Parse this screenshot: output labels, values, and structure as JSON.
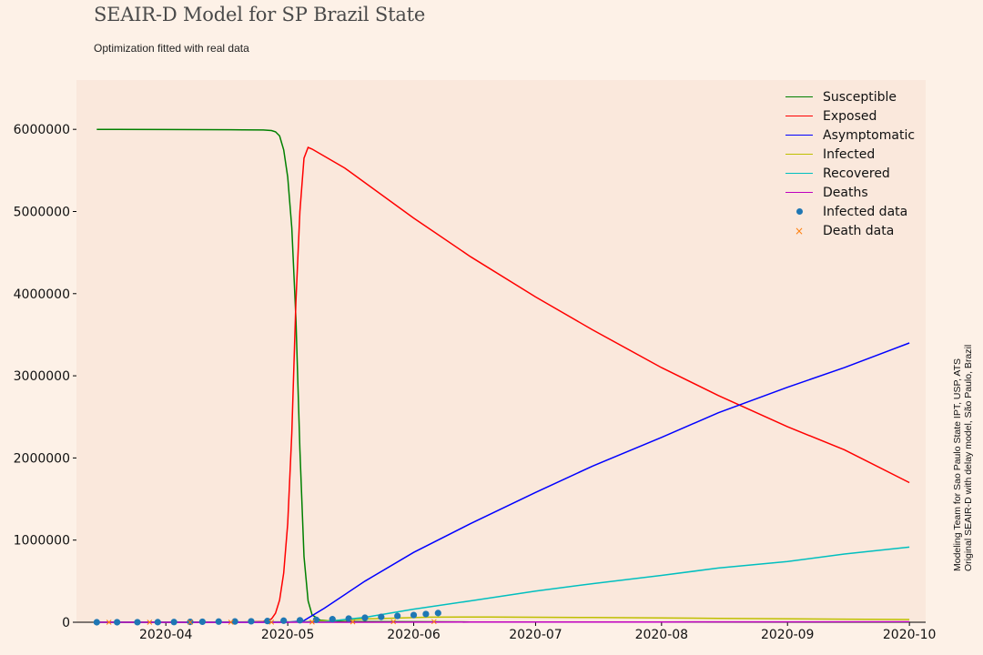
{
  "header": {
    "title": "SEAIR-D Model for SP Brazil State",
    "subtitle": "Optimization fitted with real data"
  },
  "side_note": {
    "line1": "Modeling Team for Sao Paulo State IPT, USP, ATS",
    "line2": "Original SEAIR-D with delay model, São Paulo, Brazil"
  },
  "colors": {
    "page_bg": "#fdf1e7",
    "plot_bg": "#fae8dc",
    "susceptible": "#008000",
    "exposed": "#ff0000",
    "asymptomatic": "#0000ff",
    "infected": "#bfbf00",
    "recovered": "#00bfbf",
    "deaths": "#bf00bf",
    "infected_data": "#1f77b4",
    "death_data": "#ff7f0e"
  },
  "chart_data": {
    "type": "line",
    "title": "SEAIR-D Model for SP Brazil State",
    "subtitle": "Optimization fitted with real data",
    "xlabel": "",
    "ylabel": "",
    "xlim": [
      "2020-03-10",
      "2020-10-05"
    ],
    "ylim": [
      0,
      6600000
    ],
    "x_ticks": [
      "2020-04",
      "2020-05",
      "2020-06",
      "2020-07",
      "2020-08",
      "2020-09",
      "2020-10"
    ],
    "y_ticks": [
      0,
      1000000,
      2000000,
      3000000,
      4000000,
      5000000,
      6000000
    ],
    "grid": false,
    "legend_position": "top-right",
    "series": [
      {
        "name": "Susceptible",
        "style": "line",
        "points": [
          [
            "2020-03-15",
            6000000
          ],
          [
            "2020-04-01",
            5998000
          ],
          [
            "2020-04-20",
            5994000
          ],
          [
            "2020-04-25",
            5992000
          ],
          [
            "2020-04-27",
            5985000
          ],
          [
            "2020-04-28",
            5970000
          ],
          [
            "2020-04-29",
            5920000
          ],
          [
            "2020-04-30",
            5750000
          ],
          [
            "2020-05-01",
            5420000
          ],
          [
            "2020-05-02",
            4800000
          ],
          [
            "2020-05-03",
            3700000
          ],
          [
            "2020-05-04",
            2100000
          ],
          [
            "2020-05-05",
            800000
          ],
          [
            "2020-05-06",
            260000
          ],
          [
            "2020-05-07",
            90000
          ],
          [
            "2020-05-09",
            25000
          ],
          [
            "2020-05-15",
            8000
          ],
          [
            "2020-06-15",
            3000
          ],
          [
            "2020-10-01",
            1000
          ]
        ]
      },
      {
        "name": "Exposed",
        "style": "line",
        "points": [
          [
            "2020-03-15",
            0
          ],
          [
            "2020-04-20",
            2000
          ],
          [
            "2020-04-25",
            10000
          ],
          [
            "2020-04-27",
            40000
          ],
          [
            "2020-04-28",
            110000
          ],
          [
            "2020-04-29",
            270000
          ],
          [
            "2020-04-30",
            600000
          ],
          [
            "2020-05-01",
            1200000
          ],
          [
            "2020-05-02",
            2300000
          ],
          [
            "2020-05-03",
            3900000
          ],
          [
            "2020-05-04",
            5000000
          ],
          [
            "2020-05-05",
            5650000
          ],
          [
            "2020-05-06",
            5780000
          ],
          [
            "2020-05-07",
            5760000
          ],
          [
            "2020-05-15",
            5530000
          ],
          [
            "2020-06-01",
            4920000
          ],
          [
            "2020-06-15",
            4450000
          ],
          [
            "2020-07-01",
            3960000
          ],
          [
            "2020-07-15",
            3560000
          ],
          [
            "2020-08-01",
            3100000
          ],
          [
            "2020-08-15",
            2760000
          ],
          [
            "2020-09-01",
            2380000
          ],
          [
            "2020-09-15",
            2100000
          ],
          [
            "2020-10-01",
            1700000
          ]
        ]
      },
      {
        "name": "Asymptomatic",
        "style": "line",
        "points": [
          [
            "2020-03-15",
            0
          ],
          [
            "2020-05-01",
            0
          ],
          [
            "2020-05-05",
            20000
          ],
          [
            "2020-05-10",
            170000
          ],
          [
            "2020-05-20",
            500000
          ],
          [
            "2020-06-01",
            850000
          ],
          [
            "2020-06-15",
            1200000
          ],
          [
            "2020-07-01",
            1580000
          ],
          [
            "2020-07-15",
            1900000
          ],
          [
            "2020-08-01",
            2250000
          ],
          [
            "2020-08-15",
            2550000
          ],
          [
            "2020-09-01",
            2860000
          ],
          [
            "2020-09-15",
            3100000
          ],
          [
            "2020-10-01",
            3400000
          ]
        ]
      },
      {
        "name": "Infected",
        "style": "line",
        "points": [
          [
            "2020-03-15",
            0
          ],
          [
            "2020-05-05",
            5000
          ],
          [
            "2020-05-20",
            40000
          ],
          [
            "2020-06-05",
            62000
          ],
          [
            "2020-06-20",
            64000
          ],
          [
            "2020-07-15",
            58000
          ],
          [
            "2020-08-15",
            48000
          ],
          [
            "2020-09-15",
            38000
          ],
          [
            "2020-10-01",
            33000
          ]
        ]
      },
      {
        "name": "Recovered",
        "style": "line",
        "points": [
          [
            "2020-03-15",
            0
          ],
          [
            "2020-05-10",
            5000
          ],
          [
            "2020-05-20",
            60000
          ],
          [
            "2020-06-01",
            160000
          ],
          [
            "2020-06-15",
            260000
          ],
          [
            "2020-07-01",
            380000
          ],
          [
            "2020-07-15",
            470000
          ],
          [
            "2020-08-01",
            570000
          ],
          [
            "2020-08-15",
            660000
          ],
          [
            "2020-09-01",
            740000
          ],
          [
            "2020-09-15",
            830000
          ],
          [
            "2020-10-01",
            915000
          ]
        ]
      },
      {
        "name": "Deaths",
        "style": "line",
        "points": [
          [
            "2020-03-15",
            0
          ],
          [
            "2020-05-15",
            500
          ],
          [
            "2020-06-15",
            2000
          ],
          [
            "2020-08-01",
            3500
          ],
          [
            "2020-10-01",
            5000
          ]
        ]
      },
      {
        "name": "Infected data",
        "style": "dots",
        "points": [
          [
            "2020-03-15",
            150
          ],
          [
            "2020-03-20",
            400
          ],
          [
            "2020-03-25",
            900
          ],
          [
            "2020-03-30",
            1500
          ],
          [
            "2020-04-03",
            2500
          ],
          [
            "2020-04-07",
            4500
          ],
          [
            "2020-04-10",
            6000
          ],
          [
            "2020-04-14",
            8000
          ],
          [
            "2020-04-18",
            9500
          ],
          [
            "2020-04-22",
            12000
          ],
          [
            "2020-04-26",
            15000
          ],
          [
            "2020-04-30",
            19000
          ],
          [
            "2020-05-04",
            24000
          ],
          [
            "2020-05-08",
            30000
          ],
          [
            "2020-05-12",
            37000
          ],
          [
            "2020-05-16",
            45000
          ],
          [
            "2020-05-20",
            55000
          ],
          [
            "2020-05-24",
            65000
          ],
          [
            "2020-05-28",
            77000
          ],
          [
            "2020-06-01",
            88000
          ],
          [
            "2020-06-04",
            100000
          ],
          [
            "2020-06-07",
            112000
          ]
        ]
      },
      {
        "name": "Death data",
        "style": "x",
        "points": [
          [
            "2020-03-18",
            10
          ],
          [
            "2020-03-28",
            100
          ],
          [
            "2020-04-07",
            350
          ],
          [
            "2020-04-17",
            850
          ],
          [
            "2020-04-27",
            1800
          ],
          [
            "2020-05-07",
            3000
          ],
          [
            "2020-05-17",
            4300
          ],
          [
            "2020-05-27",
            6000
          ],
          [
            "2020-06-06",
            7500
          ]
        ]
      }
    ]
  }
}
